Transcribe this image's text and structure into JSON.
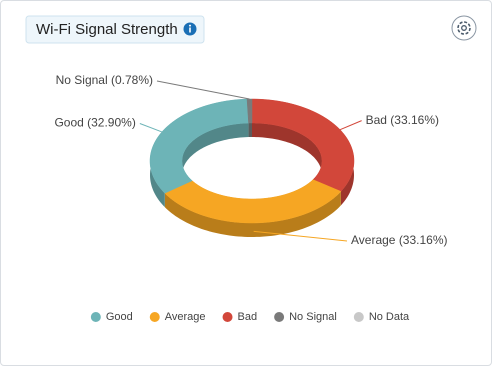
{
  "chart_data": {
    "type": "pie",
    "title": "Wi-Fi Signal Strength",
    "categories": [
      "Good",
      "Average",
      "Bad",
      "No Signal",
      "No Data"
    ],
    "values": [
      32.9,
      33.16,
      33.16,
      0.78,
      0
    ],
    "value_labels": [
      "Good (32.90%)",
      "Average (33.16%)",
      "Bad (33.16%)",
      "No Signal (0.78%)",
      null
    ],
    "colors": [
      "#6db4b7",
      "#f6a623",
      "#d2473a",
      "#7a7a7a",
      "#c8c8c8"
    ],
    "donut": true,
    "legend": "bottom"
  }
}
